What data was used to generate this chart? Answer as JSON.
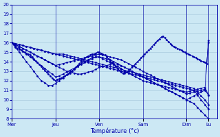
{
  "xlabel": "Température (°c)",
  "ylim": [
    8,
    20
  ],
  "yticks": [
    8,
    9,
    10,
    11,
    12,
    13,
    14,
    15,
    16,
    17,
    18,
    19,
    20
  ],
  "day_labels": [
    "Mer",
    "Jeu",
    "Ven",
    "Sam",
    "Dim",
    "Lu"
  ],
  "day_positions": [
    0,
    1,
    2,
    3,
    4,
    4.5
  ],
  "xlim": [
    0,
    4.7
  ],
  "bg_color": "#cce8f4",
  "grid_color": "#a0c4d8",
  "line_color": "#0000aa",
  "markersize": 1.5,
  "linewidth": 0.7,
  "series": [
    {
      "x": [
        0,
        0.04,
        0.08,
        0.12,
        0.17,
        0.21,
        0.25,
        0.29,
        0.33,
        0.38,
        0.42,
        0.46,
        0.5,
        0.54,
        0.58,
        0.63,
        0.67,
        0.71,
        0.75,
        0.79,
        0.83,
        0.88,
        0.92,
        0.96,
        1.0,
        1.04,
        1.08,
        1.13,
        1.17,
        1.21,
        1.25,
        1.29,
        1.33,
        1.38,
        1.42,
        1.46,
        1.5,
        1.54,
        1.58,
        1.63,
        1.67,
        1.71,
        1.75,
        1.79,
        1.83,
        1.88,
        1.92,
        1.96,
        2.0,
        2.04,
        2.08,
        2.13,
        2.17,
        2.21,
        2.25,
        2.29,
        2.33,
        2.38,
        2.42,
        2.46,
        2.5,
        2.54,
        2.58,
        2.63,
        2.67,
        2.71,
        2.75,
        2.79,
        2.83,
        2.88,
        2.92,
        2.96,
        3.0,
        3.04,
        3.08,
        3.13,
        3.17,
        3.21,
        3.25,
        3.29,
        3.33,
        3.38,
        3.42,
        3.46,
        3.5,
        3.54,
        3.58,
        3.63,
        3.67,
        3.71,
        3.75,
        3.79,
        3.83,
        3.88,
        3.92,
        3.96,
        4.0,
        4.04,
        4.08,
        4.13,
        4.17,
        4.21,
        4.25,
        4.29,
        4.33,
        4.38,
        4.42,
        4.46,
        4.5
      ],
      "y": [
        16.0,
        15.8,
        15.6,
        15.4,
        15.3,
        15.2,
        15.1,
        15.0,
        14.9,
        14.8,
        14.7,
        14.5,
        14.3,
        14.1,
        13.9,
        13.7,
        13.5,
        13.3,
        13.1,
        12.9,
        12.7,
        12.5,
        12.3,
        12.1,
        12.0,
        12.1,
        12.2,
        12.3,
        12.4,
        12.5,
        12.6,
        12.7,
        12.8,
        13.0,
        13.2,
        13.4,
        13.6,
        13.8,
        14.0,
        14.2,
        14.4,
        14.5,
        14.6,
        14.7,
        14.8,
        14.8,
        14.9,
        15.0,
        15.0,
        14.9,
        14.8,
        14.7,
        14.5,
        14.3,
        14.1,
        13.9,
        13.7,
        13.5,
        13.3,
        13.1,
        12.9,
        12.8,
        12.8,
        12.9,
        13.0,
        13.2,
        13.4,
        13.6,
        13.8,
        14.0,
        14.2,
        14.4,
        14.6,
        14.8,
        15.0,
        15.2,
        15.4,
        15.6,
        15.8,
        16.0,
        16.2,
        16.4,
        16.6,
        16.7,
        16.5,
        16.3,
        16.1,
        15.9,
        15.7,
        15.6,
        15.5,
        15.4,
        15.3,
        15.2,
        15.1,
        15.0,
        14.9,
        14.8,
        14.7,
        14.6,
        14.5,
        14.4,
        14.3,
        14.2,
        14.1,
        14.0,
        13.9,
        13.8,
        16.0
      ]
    },
    {
      "x": [
        0,
        0.08,
        0.17,
        0.25,
        0.33,
        0.42,
        0.5,
        0.58,
        0.67,
        0.75,
        0.83,
        0.92,
        1.0,
        1.08,
        1.17,
        1.25,
        1.33,
        1.42,
        1.5,
        1.58,
        1.67,
        1.75,
        1.83,
        1.92,
        2.0,
        2.08,
        2.17,
        2.25,
        2.33,
        2.42,
        2.5,
        2.58,
        2.67,
        2.75,
        2.83,
        2.92,
        3.0,
        3.08,
        3.17,
        3.25,
        3.33,
        3.42,
        3.5,
        3.58,
        3.67,
        3.75,
        3.83,
        3.92,
        4.0,
        4.08,
        4.17,
        4.25,
        4.33,
        4.42,
        4.5
      ],
      "y": [
        16.0,
        15.5,
        15.0,
        14.5,
        14.0,
        13.5,
        13.0,
        12.5,
        12.0,
        11.8,
        11.5,
        11.5,
        11.7,
        12.0,
        12.3,
        12.6,
        12.9,
        13.2,
        13.5,
        13.8,
        14.0,
        14.2,
        14.4,
        14.5,
        14.5,
        14.4,
        14.3,
        14.2,
        14.0,
        13.8,
        13.6,
        13.4,
        13.2,
        13.0,
        12.8,
        12.6,
        12.4,
        12.2,
        12.0,
        11.8,
        11.6,
        11.4,
        11.2,
        11.0,
        10.8,
        10.6,
        10.4,
        10.2,
        10.0,
        10.2,
        10.4,
        10.6,
        10.8,
        11.0,
        10.5
      ]
    },
    {
      "x": [
        0,
        0.08,
        0.17,
        0.25,
        0.33,
        0.42,
        0.5,
        0.58,
        0.67,
        0.75,
        0.83,
        0.92,
        1.0,
        1.08,
        1.17,
        1.25,
        1.33,
        1.42,
        1.5,
        1.58,
        1.67,
        1.75,
        1.83,
        1.92,
        2.0,
        2.08,
        2.17,
        2.25,
        2.33,
        2.42,
        2.5,
        2.58,
        2.67,
        2.75,
        2.83,
        2.92,
        3.0,
        3.08,
        3.17,
        3.25,
        3.33,
        3.42,
        3.5,
        3.58,
        3.67,
        3.75,
        3.83,
        3.92,
        4.0,
        4.08,
        4.17,
        4.25,
        4.33,
        4.42,
        4.5
      ],
      "y": [
        16.0,
        15.7,
        15.4,
        15.1,
        14.8,
        14.5,
        14.2,
        13.9,
        13.6,
        13.3,
        13.0,
        12.7,
        12.4,
        12.5,
        12.7,
        12.9,
        13.1,
        13.3,
        13.5,
        13.7,
        13.9,
        14.1,
        14.3,
        14.5,
        14.5,
        14.3,
        14.1,
        13.9,
        13.7,
        13.5,
        13.3,
        13.0,
        12.8,
        12.6,
        12.4,
        12.2,
        12.0,
        11.9,
        11.8,
        11.7,
        11.6,
        11.5,
        11.4,
        11.3,
        11.2,
        11.1,
        11.0,
        10.9,
        10.8,
        10.9,
        11.0,
        11.1,
        11.2,
        11.3,
        10.5
      ]
    },
    {
      "x": [
        0,
        0.08,
        0.17,
        0.25,
        0.33,
        0.42,
        0.5,
        0.58,
        0.67,
        0.75,
        0.83,
        0.92,
        1.0,
        1.08,
        1.17,
        1.25,
        1.33,
        1.42,
        1.5,
        1.58,
        1.67,
        1.75,
        1.83,
        1.92,
        2.0,
        2.08,
        2.17,
        2.25,
        2.33,
        2.42,
        2.5,
        2.58,
        2.67,
        2.75,
        2.83,
        2.92,
        3.0,
        3.08,
        3.17,
        3.25,
        3.33,
        3.42,
        3.5,
        3.58,
        3.67,
        3.75,
        3.83,
        3.92,
        4.0,
        4.08,
        4.17,
        4.25,
        4.33,
        4.42,
        4.5
      ],
      "y": [
        16.0,
        15.8,
        15.6,
        15.4,
        15.2,
        15.0,
        14.8,
        14.6,
        14.4,
        14.2,
        14.0,
        13.8,
        13.6,
        13.7,
        13.8,
        13.9,
        14.0,
        14.1,
        14.2,
        14.3,
        14.4,
        14.5,
        14.6,
        14.7,
        14.8,
        14.7,
        14.6,
        14.5,
        14.4,
        14.3,
        14.2,
        14.0,
        13.8,
        13.6,
        13.4,
        13.2,
        13.0,
        12.8,
        12.6,
        12.4,
        12.2,
        12.0,
        11.8,
        11.6,
        11.4,
        11.2,
        11.0,
        10.8,
        10.6,
        10.7,
        10.8,
        10.9,
        11.0,
        11.1,
        16.2
      ]
    },
    {
      "x": [
        0,
        0.08,
        0.17,
        0.25,
        0.33,
        0.42,
        0.5,
        0.58,
        0.67,
        0.75,
        0.83,
        0.92,
        1.0,
        1.08,
        1.17,
        1.25,
        1.33,
        1.42,
        1.5,
        1.58,
        1.67,
        1.75,
        1.83,
        1.92,
        2.0,
        2.08,
        2.17,
        2.25,
        2.33,
        2.42,
        2.5,
        2.58,
        2.67,
        2.75,
        2.83,
        2.92,
        3.0,
        3.08,
        3.17,
        3.25,
        3.33,
        3.42,
        3.5,
        3.58,
        3.67,
        3.75,
        3.83,
        3.92,
        4.0,
        4.08,
        4.17,
        4.25,
        4.33,
        4.42,
        4.5
      ],
      "y": [
        16.0,
        15.9,
        15.8,
        15.7,
        15.6,
        15.5,
        15.4,
        15.3,
        15.2,
        15.1,
        15.0,
        14.9,
        14.8,
        14.7,
        14.6,
        14.5,
        14.4,
        14.3,
        14.2,
        14.1,
        14.0,
        13.9,
        13.8,
        13.7,
        13.6,
        13.5,
        13.4,
        13.3,
        13.2,
        13.1,
        13.0,
        12.9,
        12.8,
        12.7,
        12.6,
        12.5,
        12.4,
        12.3,
        12.2,
        12.1,
        12.0,
        11.9,
        11.8,
        11.7,
        11.6,
        11.5,
        11.4,
        11.3,
        11.2,
        11.1,
        11.0,
        10.5,
        10.0,
        9.5,
        9.0
      ]
    },
    {
      "x": [
        0,
        0.08,
        0.17,
        0.25,
        0.33,
        0.42,
        0.5,
        0.58,
        0.67,
        0.75,
        0.83,
        0.92,
        1.0,
        1.08,
        1.17,
        1.25,
        1.33,
        1.42,
        1.5,
        1.58,
        1.67,
        1.75,
        1.83,
        1.92,
        2.0,
        2.08,
        2.17,
        2.25,
        2.33,
        2.42,
        2.5,
        2.58,
        2.67,
        2.75,
        2.83,
        2.92,
        3.0,
        3.08,
        3.17,
        3.25,
        3.33,
        3.42,
        3.5,
        3.58,
        3.67,
        3.75,
        3.83,
        3.92,
        4.0,
        4.08,
        4.17,
        4.25,
        4.33,
        4.42,
        4.5
      ],
      "y": [
        16.0,
        15.9,
        15.8,
        15.7,
        15.6,
        15.5,
        15.4,
        15.3,
        15.2,
        15.1,
        15.0,
        14.9,
        14.8,
        14.8,
        14.8,
        14.7,
        14.6,
        14.5,
        14.4,
        14.3,
        14.2,
        14.1,
        14.0,
        13.9,
        13.8,
        13.7,
        13.6,
        13.5,
        13.4,
        13.3,
        13.2,
        13.1,
        13.0,
        12.9,
        12.8,
        12.7,
        12.6,
        12.5,
        12.4,
        12.3,
        12.2,
        12.1,
        12.0,
        11.9,
        11.8,
        11.7,
        11.6,
        11.5,
        11.4,
        11.3,
        11.2,
        10.8,
        10.4,
        10.0,
        9.5
      ]
    },
    {
      "x": [
        0,
        0.08,
        0.17,
        0.25,
        0.33,
        0.42,
        0.5,
        0.58,
        0.67,
        0.75,
        0.83,
        0.92,
        1.0,
        1.08,
        1.17,
        1.25,
        1.33,
        1.42,
        1.5,
        1.58,
        1.67,
        1.75,
        1.83,
        1.92,
        2.0,
        2.08,
        2.17,
        2.25,
        2.33,
        2.42,
        2.5,
        2.58,
        2.67,
        2.75,
        2.83,
        2.92,
        3.0,
        3.08,
        3.17,
        3.25,
        3.33,
        3.42,
        3.5,
        3.58,
        3.67,
        3.75,
        3.83,
        3.92,
        4.0,
        4.08,
        4.17,
        4.25,
        4.33,
        4.42,
        4.5
      ],
      "y": [
        16.0,
        15.8,
        15.6,
        15.4,
        15.2,
        15.0,
        14.8,
        14.6,
        14.4,
        14.2,
        14.0,
        13.8,
        13.6,
        13.4,
        13.2,
        13.0,
        12.9,
        12.8,
        12.7,
        12.7,
        12.8,
        12.9,
        13.0,
        13.2,
        13.4,
        13.5,
        13.6,
        13.7,
        13.8,
        13.7,
        13.6,
        13.4,
        13.2,
        13.0,
        12.8,
        12.6,
        12.4,
        12.2,
        12.0,
        11.8,
        11.6,
        11.4,
        11.2,
        11.0,
        10.8,
        10.6,
        10.4,
        10.2,
        10.0,
        9.8,
        9.6,
        9.2,
        8.8,
        8.4,
        8.0
      ]
    }
  ]
}
